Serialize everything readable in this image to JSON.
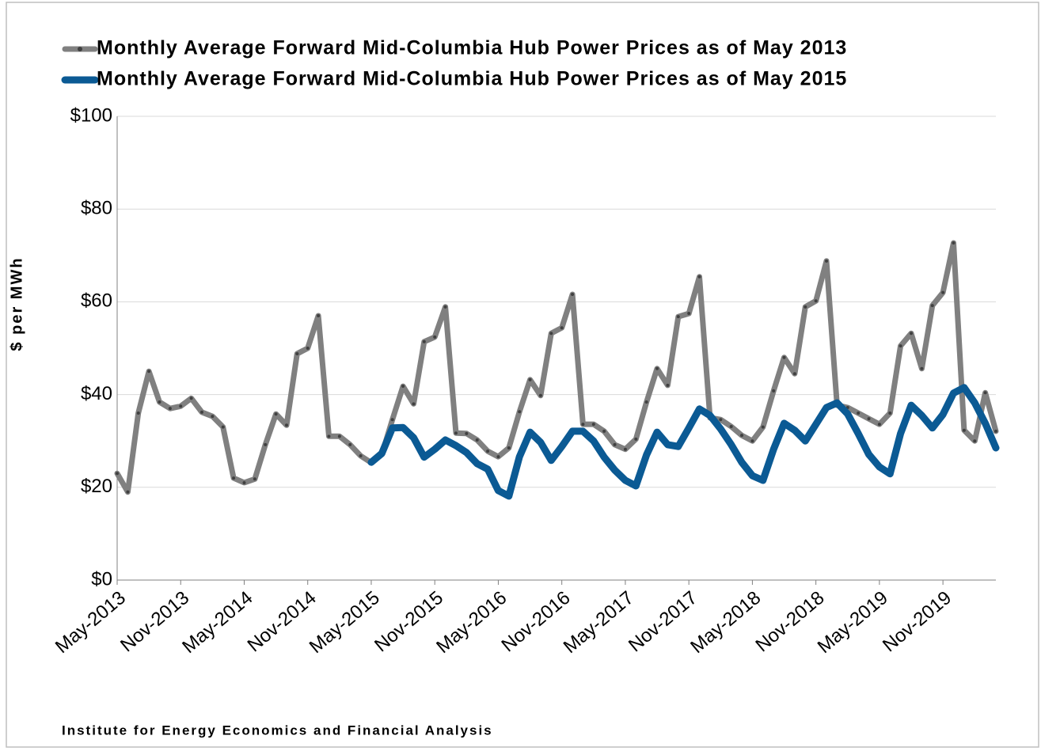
{
  "chart_data": {
    "type": "line",
    "legend_position": "top",
    "series": [
      {
        "name": "Monthly Average Forward Mid-Columbia Hub Power Prices as of May 2013",
        "color": "#808080",
        "values": [
          23,
          19,
          36,
          45,
          38.4,
          37,
          37.5,
          39.2,
          36.2,
          35.3,
          33,
          22,
          21,
          21.8,
          29.2,
          35.8,
          33.4,
          48.8,
          50,
          57,
          31,
          31,
          29.2,
          26.8,
          25.3,
          27.1,
          34.6,
          41.8,
          38,
          51.4,
          52.4,
          58.9,
          31.7,
          31.6,
          30.2,
          27.8,
          26.6,
          28.5,
          36.3,
          43.2,
          39.8,
          53.2,
          54.4,
          61.6,
          33.6,
          33.6,
          32.1,
          29.2,
          28.2,
          30.4,
          38.4,
          45.6,
          42,
          56.8,
          57.5,
          65.4,
          35,
          34.6,
          33.1,
          31.2,
          30,
          33,
          40.8,
          48,
          44.5,
          58.9,
          60.2,
          68.8,
          37.7,
          37.2,
          36,
          34.8,
          33.6,
          36,
          50.5,
          53.2,
          45.6,
          59.2,
          62,
          72.7,
          32.3,
          30,
          40.4,
          32.1
        ]
      },
      {
        "name": "Monthly Average Forward Mid-Columbia Hub Power Prices as of May 2015",
        "color": "#0b5a94",
        "values": [
          null,
          null,
          null,
          null,
          null,
          null,
          null,
          null,
          null,
          null,
          null,
          null,
          null,
          null,
          null,
          null,
          null,
          null,
          null,
          null,
          null,
          null,
          null,
          null,
          25.4,
          27.3,
          32.8,
          32.9,
          30.7,
          26.5,
          28.2,
          30.2,
          29,
          27.5,
          25.1,
          23.9,
          19.3,
          18.1,
          26.6,
          31.9,
          29.7,
          25.8,
          28.8,
          32.1,
          32.1,
          30,
          26.5,
          23.7,
          21.5,
          20.3,
          27,
          31.9,
          29.2,
          28.8,
          32.8,
          36.9,
          35.5,
          32.6,
          29.2,
          25.4,
          22.5,
          21.5,
          28.2,
          33.8,
          32.3,
          30,
          33.6,
          37.2,
          38.2,
          35.8,
          31.6,
          27.1,
          24.4,
          22.9,
          31.6,
          37.7,
          35.5,
          32.8,
          35.7,
          40.3,
          41.5,
          38.2,
          33.8,
          28.5
        ]
      }
    ],
    "categories": [
      "May-2013",
      null,
      null,
      null,
      null,
      null,
      "Nov-2013",
      null,
      null,
      null,
      null,
      null,
      "May-2014",
      null,
      null,
      null,
      null,
      null,
      "Nov-2014",
      null,
      null,
      null,
      null,
      null,
      "May-2015",
      null,
      null,
      null,
      null,
      null,
      "Nov-2015",
      null,
      null,
      null,
      null,
      null,
      "May-2016",
      null,
      null,
      null,
      null,
      null,
      "Nov-2016",
      null,
      null,
      null,
      null,
      null,
      "May-2017",
      null,
      null,
      null,
      null,
      null,
      "Nov-2017",
      null,
      null,
      null,
      null,
      null,
      "May-2018",
      null,
      null,
      null,
      null,
      null,
      "Nov-2018",
      null,
      null,
      null,
      null,
      null,
      "May-2019",
      null,
      null,
      null,
      null,
      null,
      "Nov-2019",
      null,
      null,
      null,
      null,
      null
    ],
    "y_label": "$ per MWh",
    "ylim": [
      0,
      100
    ],
    "yticks": [
      {
        "value": 0,
        "label": "$0"
      },
      {
        "value": 20,
        "label": "$20"
      },
      {
        "value": 40,
        "label": "$40"
      },
      {
        "value": 60,
        "label": "$60"
      },
      {
        "value": 80,
        "label": "$80"
      },
      {
        "value": 100,
        "label": "$100"
      }
    ],
    "grid": true,
    "source": "Institute for Energy Economics and Financial Analysis"
  }
}
